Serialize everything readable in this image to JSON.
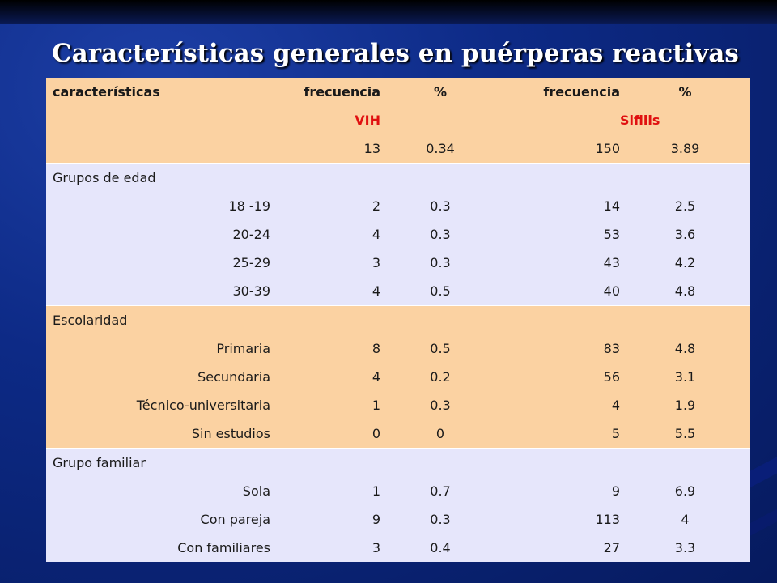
{
  "title": "Características generales en puérperas reactivas",
  "header": {
    "col0": "características",
    "col1": "frecuencia",
    "col2": "%",
    "col3": "frecuencia",
    "col4": "%",
    "group_vih": "VIH",
    "group_sifilis": "Sifilis"
  },
  "totals": {
    "f1": "13",
    "p1": "0.34",
    "f2": "150",
    "p2": "3.89"
  },
  "sections": [
    {
      "label": "Grupos de edad",
      "rows": [
        {
          "label": "18 -19",
          "f1": "2",
          "p1": "0.3",
          "f2": "14",
          "p2": "2.5"
        },
        {
          "label": "20-24",
          "f1": "4",
          "p1": "0.3",
          "f2": "53",
          "p2": "3.6"
        },
        {
          "label": "25-29",
          "f1": "3",
          "p1": "0.3",
          "f2": "43",
          "p2": "4.2"
        },
        {
          "label": "30-39",
          "f1": "4",
          "p1": "0.5",
          "f2": "40",
          "p2": "4.8"
        }
      ]
    },
    {
      "label": "Escolaridad",
      "rows": [
        {
          "label": "Primaria",
          "f1": "8",
          "p1": "0.5",
          "f2": "83",
          "p2": "4.8"
        },
        {
          "label": "Secundaria",
          "f1": "4",
          "p1": "0.2",
          "f2": "56",
          "p2": "3.1"
        },
        {
          "label": "Técnico-universitaria",
          "f1": "1",
          "p1": "0.3",
          "f2": "4",
          "p2": "1.9"
        },
        {
          "label": "Sin estudios",
          "f1": "0",
          "p1": "0",
          "f2": "5",
          "p2": "5.5"
        }
      ]
    },
    {
      "label": "Grupo familiar",
      "rows": [
        {
          "label": "Sola",
          "f1": "1",
          "p1": "0.7",
          "f2": "9",
          "p2": "6.9"
        },
        {
          "label": "Con pareja",
          "f1": "9",
          "p1": "0.3",
          "f2": "113",
          "p2": "4"
        },
        {
          "label": "Con familiares",
          "f1": "3",
          "p1": "0.4",
          "f2": "27",
          "p2": "3.3"
        }
      ]
    }
  ]
}
